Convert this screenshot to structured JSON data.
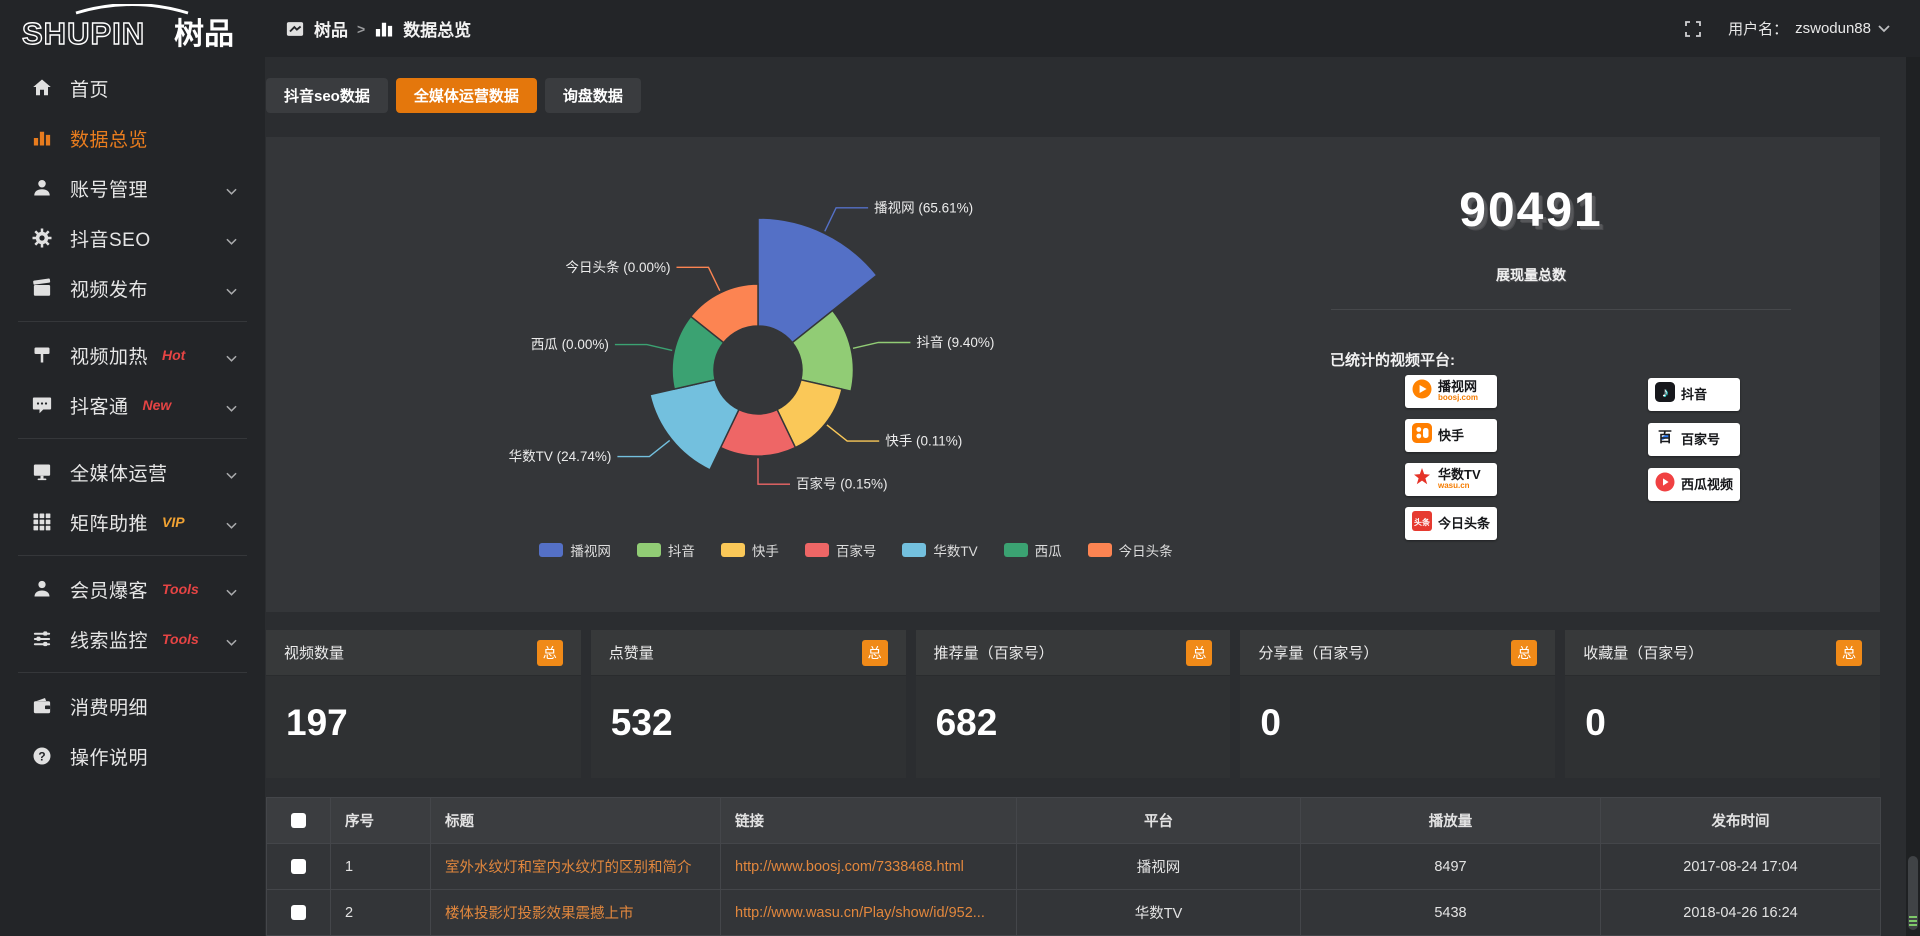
{
  "app": {
    "logo_en": "SHUPIN",
    "logo_cn": "树品",
    "username_label": "用户名：",
    "username": "zswodun88"
  },
  "breadcrumb": {
    "root": "树品",
    "separator": ">",
    "current": "数据总览"
  },
  "tabs": [
    {
      "label": "抖音seo数据",
      "active": false
    },
    {
      "label": "全媒体运营数据",
      "active": true
    },
    {
      "label": "询盘数据",
      "active": false
    }
  ],
  "sidebar": {
    "items": [
      {
        "id": "home",
        "label": "首页",
        "icon": "home-icon",
        "active": false,
        "expandable": false
      },
      {
        "id": "data-overview",
        "label": "数据总览",
        "icon": "bar-chart-icon",
        "active": true,
        "expandable": false
      },
      {
        "id": "account-management",
        "label": "账号管理",
        "icon": "user-icon",
        "expandable": true
      },
      {
        "id": "douyin-seo",
        "label": "抖音SEO",
        "icon": "gear-icon",
        "expandable": true
      },
      {
        "id": "video-publish",
        "label": "视频发布",
        "icon": "video-publish-icon",
        "expandable": true
      },
      {
        "divider": true
      },
      {
        "id": "video-heating",
        "label": "视频加热",
        "badge": "Hot",
        "badge_color": "red",
        "icon": "heat-icon",
        "expandable": true
      },
      {
        "id": "douketong",
        "label": "抖客通",
        "badge": "New",
        "badge_color": "red",
        "icon": "chat-icon",
        "expandable": true
      },
      {
        "divider": true
      },
      {
        "id": "omnimedia-operation",
        "label": "全媒体运营",
        "icon": "monitor-icon",
        "expandable": true
      },
      {
        "id": "matrix-boost",
        "label": "矩阵助推",
        "badge": "VIP",
        "badge_color": "orange",
        "icon": "grid-icon",
        "expandable": true
      },
      {
        "divider": true
      },
      {
        "id": "member-baoke",
        "label": "会员爆客",
        "badge": "Tools",
        "badge_color": "red",
        "icon": "member-icon",
        "expandable": true
      },
      {
        "id": "clue-monitor",
        "label": "线索监控",
        "badge": "Tools",
        "badge_color": "red",
        "icon": "sliders-icon",
        "expandable": true
      },
      {
        "divider": true
      },
      {
        "id": "consumption-detail",
        "label": "消费明细",
        "icon": "wallet-icon",
        "expandable": false
      },
      {
        "id": "operation-guide",
        "label": "操作说明",
        "icon": "question-icon",
        "expandable": false
      }
    ]
  },
  "chart_data": {
    "type": "pie",
    "subtype": "nightingale-rose",
    "title": "",
    "categories": [
      "播视网",
      "抖音",
      "快手",
      "百家号",
      "华数TV",
      "西瓜",
      "今日头条"
    ],
    "values": [
      65.61,
      9.4,
      0.11,
      0.15,
      24.74,
      0.0,
      0.0
    ],
    "value_unit": "percent",
    "labels": [
      "播视网 (65.61%)",
      "抖音 (9.40%)",
      "快手 (0.11%)",
      "百家号 (0.15%)",
      "华数TV (24.74%)",
      "西瓜 (0.00%)",
      "今日头条 (0.00%)"
    ],
    "colors": [
      "#5470c6",
      "#91cc75",
      "#fac858",
      "#ee6666",
      "#73c0de",
      "#3ba272",
      "#fc8452"
    ],
    "legend": [
      "播视网",
      "抖音",
      "快手",
      "百家号",
      "华数TV",
      "西瓜",
      "今日头条"
    ],
    "legend_position": "bottom"
  },
  "summary": {
    "total_value": "90491",
    "total_label": "展现量总数",
    "platforms_label": "已统计的视频平台:",
    "platforms_left": [
      {
        "name": "播视网",
        "sub": "boosj.com",
        "logo": "boosj-logo"
      },
      {
        "name": "快手",
        "sub": "",
        "logo": "kuaishou-logo"
      },
      {
        "name": "华数TV",
        "sub": "wasu.cn",
        "logo": "wasu-logo"
      },
      {
        "name": "今日头条",
        "sub": "",
        "logo": "toutiao-logo"
      }
    ],
    "platforms_right": [
      {
        "name": "抖音",
        "sub": "",
        "logo": "douyin-logo"
      },
      {
        "name": "百家号",
        "sub": "",
        "logo": "baijiahao-logo"
      },
      {
        "name": "西瓜视频",
        "sub": "",
        "logo": "xigua-logo"
      }
    ]
  },
  "stat_cards": [
    {
      "title": "视频数量",
      "badge": "总",
      "value": "197"
    },
    {
      "title": "点赞量",
      "badge": "总",
      "value": "532"
    },
    {
      "title": "推荐量（百家号）",
      "badge": "总",
      "value": "682"
    },
    {
      "title": "分享量（百家号）",
      "badge": "总",
      "value": "0"
    },
    {
      "title": "收藏量（百家号）",
      "badge": "总",
      "value": "0"
    }
  ],
  "table": {
    "columns": [
      "",
      "序号",
      "标题",
      "链接",
      "平台",
      "播放量",
      "发布时间"
    ],
    "rows": [
      {
        "no": "1",
        "title": "室外水纹灯和室内水纹灯的区别和简介",
        "link": "http://www.boosj.com/7338468.html",
        "platform": "播视网",
        "plays": "8497",
        "time": "2017-08-24 17:04"
      },
      {
        "no": "2",
        "title": "楼体投影灯投影效果震撼上市",
        "link": "http://www.wasu.cn/Play/show/id/952...",
        "platform": "华数TV",
        "plays": "5438",
        "time": "2018-04-26 16:24"
      }
    ]
  },
  "colors": {
    "accent_orange": "#e4770c",
    "badge_orange": "#f08a18",
    "link_orange": "#e2873d",
    "active_menu_orange": "#e87c1e",
    "hot_red": "#e64444",
    "vip_orange": "#f0a233",
    "page_bg": "#2b2d30",
    "sidebar_bg": "#232528",
    "panel_bg": "#343639"
  }
}
